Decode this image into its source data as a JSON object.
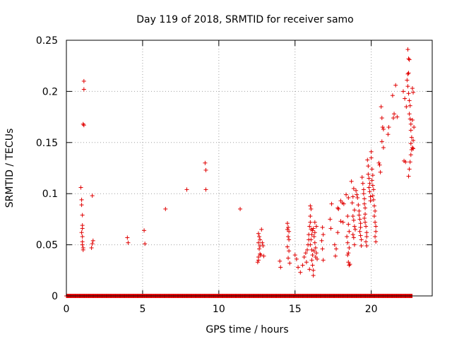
{
  "chart_data": {
    "type": "scatter",
    "title": "Day 119 of 2018, SRMTID for receiver samo",
    "xlabel": "GPS time / hours",
    "ylabel": "SRMTID / TECUs",
    "xlim": [
      0,
      24
    ],
    "ylim": [
      0,
      0.25
    ],
    "grid": true,
    "xticks": [
      0,
      5,
      10,
      15,
      20
    ],
    "xtick_labels": [
      "0",
      "5",
      "10",
      "15",
      "20"
    ],
    "yticks": [
      0,
      0.05,
      0.1,
      0.15,
      0.2,
      0.25
    ],
    "ytick_labels": [
      "0",
      "0.05",
      "0.1",
      "0.15",
      "0.2",
      "0.25"
    ],
    "series": [
      {
        "name": "SRMTID",
        "marker": "+",
        "color": "#e00000",
        "zero_baseline_range": [
          0,
          22.7
        ],
        "points": [
          [
            0.95,
            0.106
          ],
          [
            1.0,
            0.094
          ],
          [
            1.0,
            0.089
          ],
          [
            1.05,
            0.079
          ],
          [
            1.05,
            0.069
          ],
          [
            1.05,
            0.066
          ],
          [
            1.0,
            0.062
          ],
          [
            1.05,
            0.058
          ],
          [
            1.05,
            0.053
          ],
          [
            1.05,
            0.05
          ],
          [
            1.1,
            0.047
          ],
          [
            1.1,
            0.045
          ],
          [
            1.15,
            0.21
          ],
          [
            1.15,
            0.202
          ],
          [
            1.1,
            0.168
          ],
          [
            1.15,
            0.167
          ],
          [
            1.7,
            0.098
          ],
          [
            1.75,
            0.054
          ],
          [
            1.7,
            0.051
          ],
          [
            1.65,
            0.047
          ],
          [
            4.0,
            0.057
          ],
          [
            4.05,
            0.052
          ],
          [
            5.1,
            0.064
          ],
          [
            5.15,
            0.051
          ],
          [
            6.5,
            0.085
          ],
          [
            7.9,
            0.104
          ],
          [
            9.1,
            0.13
          ],
          [
            9.15,
            0.123
          ],
          [
            9.15,
            0.104
          ],
          [
            11.4,
            0.085
          ],
          [
            12.6,
            0.061
          ],
          [
            12.65,
            0.058
          ],
          [
            12.7,
            0.055
          ],
          [
            12.6,
            0.052
          ],
          [
            12.7,
            0.049
          ],
          [
            12.65,
            0.046
          ],
          [
            12.7,
            0.041
          ],
          [
            12.6,
            0.038
          ],
          [
            12.75,
            0.04
          ],
          [
            12.6,
            0.035
          ],
          [
            12.55,
            0.033
          ],
          [
            12.8,
            0.065
          ],
          [
            12.9,
            0.049
          ],
          [
            12.95,
            0.039
          ],
          [
            12.85,
            0.052
          ],
          [
            14.0,
            0.034
          ],
          [
            14.05,
            0.028
          ],
          [
            14.5,
            0.071
          ],
          [
            14.55,
            0.067
          ],
          [
            14.6,
            0.063
          ],
          [
            14.55,
            0.058
          ],
          [
            14.6,
            0.055
          ],
          [
            14.5,
            0.048
          ],
          [
            14.6,
            0.044
          ],
          [
            14.55,
            0.037
          ],
          [
            14.65,
            0.032
          ],
          [
            14.5,
            0.065
          ],
          [
            15.0,
            0.04
          ],
          [
            15.1,
            0.036
          ],
          [
            15.2,
            0.028
          ],
          [
            15.35,
            0.023
          ],
          [
            15.5,
            0.03
          ],
          [
            15.6,
            0.038
          ],
          [
            15.7,
            0.042
          ],
          [
            15.8,
            0.045
          ],
          [
            15.85,
            0.05
          ],
          [
            15.9,
            0.055
          ],
          [
            15.9,
            0.06
          ],
          [
            15.95,
            0.068
          ],
          [
            16.0,
            0.078
          ],
          [
            16.0,
            0.088
          ],
          [
            16.05,
            0.085
          ],
          [
            16.0,
            0.072
          ],
          [
            16.05,
            0.065
          ],
          [
            16.1,
            0.06
          ],
          [
            16.05,
            0.055
          ],
          [
            16.0,
            0.05
          ],
          [
            16.1,
            0.045
          ],
          [
            16.15,
            0.04
          ],
          [
            16.1,
            0.035
          ],
          [
            16.15,
            0.03
          ],
          [
            16.2,
            0.025
          ],
          [
            16.2,
            0.02
          ],
          [
            16.25,
            0.058
          ],
          [
            16.3,
            0.062
          ],
          [
            16.3,
            0.052
          ],
          [
            16.35,
            0.047
          ],
          [
            16.4,
            0.042
          ],
          [
            16.35,
            0.038
          ],
          [
            16.4,
            0.068
          ],
          [
            16.3,
            0.072
          ],
          [
            16.2,
            0.066
          ],
          [
            16.25,
            0.044
          ],
          [
            15.75,
            0.033
          ],
          [
            15.95,
            0.026
          ],
          [
            16.15,
            0.064
          ],
          [
            16.45,
            0.036
          ],
          [
            16.8,
            0.067
          ],
          [
            16.85,
            0.06
          ],
          [
            16.75,
            0.054
          ],
          [
            16.8,
            0.046
          ],
          [
            16.85,
            0.035
          ],
          [
            17.3,
            0.075
          ],
          [
            17.35,
            0.066
          ],
          [
            17.6,
            0.05
          ],
          [
            17.7,
            0.046
          ],
          [
            17.65,
            0.039
          ],
          [
            17.4,
            0.09
          ],
          [
            17.8,
            0.086
          ],
          [
            17.85,
            0.085
          ],
          [
            18.0,
            0.093
          ],
          [
            18.1,
            0.091
          ],
          [
            18.0,
            0.073
          ],
          [
            18.15,
            0.072
          ],
          [
            17.8,
            0.062
          ],
          [
            18.2,
            0.09
          ],
          [
            18.35,
            0.099
          ],
          [
            18.5,
            0.096
          ],
          [
            18.45,
            0.078
          ],
          [
            18.5,
            0.07
          ],
          [
            18.55,
            0.063
          ],
          [
            18.4,
            0.058
          ],
          [
            18.45,
            0.052
          ],
          [
            18.55,
            0.047
          ],
          [
            18.5,
            0.042
          ],
          [
            18.45,
            0.04
          ],
          [
            18.5,
            0.033
          ],
          [
            18.55,
            0.03
          ],
          [
            18.6,
            0.031
          ],
          [
            18.7,
            0.112
          ],
          [
            18.85,
            0.105
          ],
          [
            18.8,
            0.097
          ],
          [
            18.75,
            0.091
          ],
          [
            18.9,
            0.084
          ],
          [
            18.8,
            0.078
          ],
          [
            18.85,
            0.074
          ],
          [
            18.9,
            0.068
          ],
          [
            18.95,
            0.065
          ],
          [
            18.8,
            0.06
          ],
          [
            18.85,
            0.057
          ],
          [
            18.9,
            0.05
          ],
          [
            19.0,
            0.103
          ],
          [
            19.05,
            0.099
          ],
          [
            19.1,
            0.096
          ],
          [
            19.15,
            0.089
          ],
          [
            19.2,
            0.083
          ],
          [
            19.2,
            0.079
          ],
          [
            19.25,
            0.075
          ],
          [
            19.3,
            0.071
          ],
          [
            19.3,
            0.067
          ],
          [
            19.25,
            0.063
          ],
          [
            19.3,
            0.059
          ],
          [
            19.35,
            0.055
          ],
          [
            19.35,
            0.049
          ],
          [
            19.4,
            0.116
          ],
          [
            19.45,
            0.11
          ],
          [
            19.5,
            0.104
          ],
          [
            19.5,
            0.1
          ],
          [
            19.55,
            0.095
          ],
          [
            19.55,
            0.09
          ],
          [
            19.6,
            0.086
          ],
          [
            19.6,
            0.08
          ],
          [
            19.55,
            0.076
          ],
          [
            19.6,
            0.072
          ],
          [
            19.65,
            0.068
          ],
          [
            19.7,
            0.062
          ],
          [
            19.7,
            0.058
          ],
          [
            19.65,
            0.053
          ],
          [
            19.7,
            0.049
          ],
          [
            19.75,
            0.133
          ],
          [
            19.8,
            0.127
          ],
          [
            19.8,
            0.119
          ],
          [
            19.85,
            0.115
          ],
          [
            19.9,
            0.11
          ],
          [
            19.85,
            0.106
          ],
          [
            19.9,
            0.102
          ],
          [
            19.95,
            0.097
          ],
          [
            19.95,
            0.093
          ],
          [
            20.0,
            0.141
          ],
          [
            20.0,
            0.135
          ],
          [
            20.05,
            0.124
          ],
          [
            20.1,
            0.118
          ],
          [
            20.05,
            0.113
          ],
          [
            20.1,
            0.108
          ],
          [
            20.15,
            0.104
          ],
          [
            20.1,
            0.098
          ],
          [
            20.15,
            0.094
          ],
          [
            20.2,
            0.088
          ],
          [
            20.25,
            0.083
          ],
          [
            20.2,
            0.078
          ],
          [
            20.25,
            0.072
          ],
          [
            20.3,
            0.068
          ],
          [
            20.3,
            0.063
          ],
          [
            20.25,
            0.058
          ],
          [
            20.3,
            0.053
          ],
          [
            20.5,
            0.13
          ],
          [
            20.55,
            0.128
          ],
          [
            20.6,
            0.121
          ],
          [
            20.7,
            0.174
          ],
          [
            20.75,
            0.165
          ],
          [
            20.8,
            0.163
          ],
          [
            20.7,
            0.151
          ],
          [
            20.8,
            0.145
          ],
          [
            20.65,
            0.185
          ],
          [
            21.1,
            0.158
          ],
          [
            21.15,
            0.165
          ],
          [
            21.5,
            0.178
          ],
          [
            21.45,
            0.174
          ],
          [
            21.4,
            0.196
          ],
          [
            21.6,
            0.206
          ],
          [
            21.7,
            0.175
          ],
          [
            22.1,
            0.2
          ],
          [
            22.2,
            0.193
          ],
          [
            22.3,
            0.185
          ],
          [
            22.25,
            0.131
          ],
          [
            22.15,
            0.132
          ],
          [
            22.4,
            0.241
          ],
          [
            22.45,
            0.232
          ],
          [
            22.5,
            0.231
          ],
          [
            22.45,
            0.218
          ],
          [
            22.4,
            0.217
          ],
          [
            22.35,
            0.211
          ],
          [
            22.4,
            0.205
          ],
          [
            22.45,
            0.198
          ],
          [
            22.5,
            0.191
          ],
          [
            22.55,
            0.186
          ],
          [
            22.5,
            0.178
          ],
          [
            22.55,
            0.173
          ],
          [
            22.6,
            0.168
          ],
          [
            22.6,
            0.162
          ],
          [
            22.65,
            0.155
          ],
          [
            22.6,
            0.149
          ],
          [
            22.65,
            0.143
          ],
          [
            22.7,
            0.145
          ],
          [
            22.75,
            0.144
          ],
          [
            22.6,
            0.138
          ],
          [
            22.55,
            0.131
          ],
          [
            22.5,
            0.124
          ],
          [
            22.45,
            0.117
          ],
          [
            22.7,
            0.203
          ],
          [
            22.75,
            0.199
          ],
          [
            22.8,
            0.165
          ],
          [
            22.7,
            0.172
          ],
          [
            22.75,
            0.152
          ]
        ]
      }
    ]
  }
}
